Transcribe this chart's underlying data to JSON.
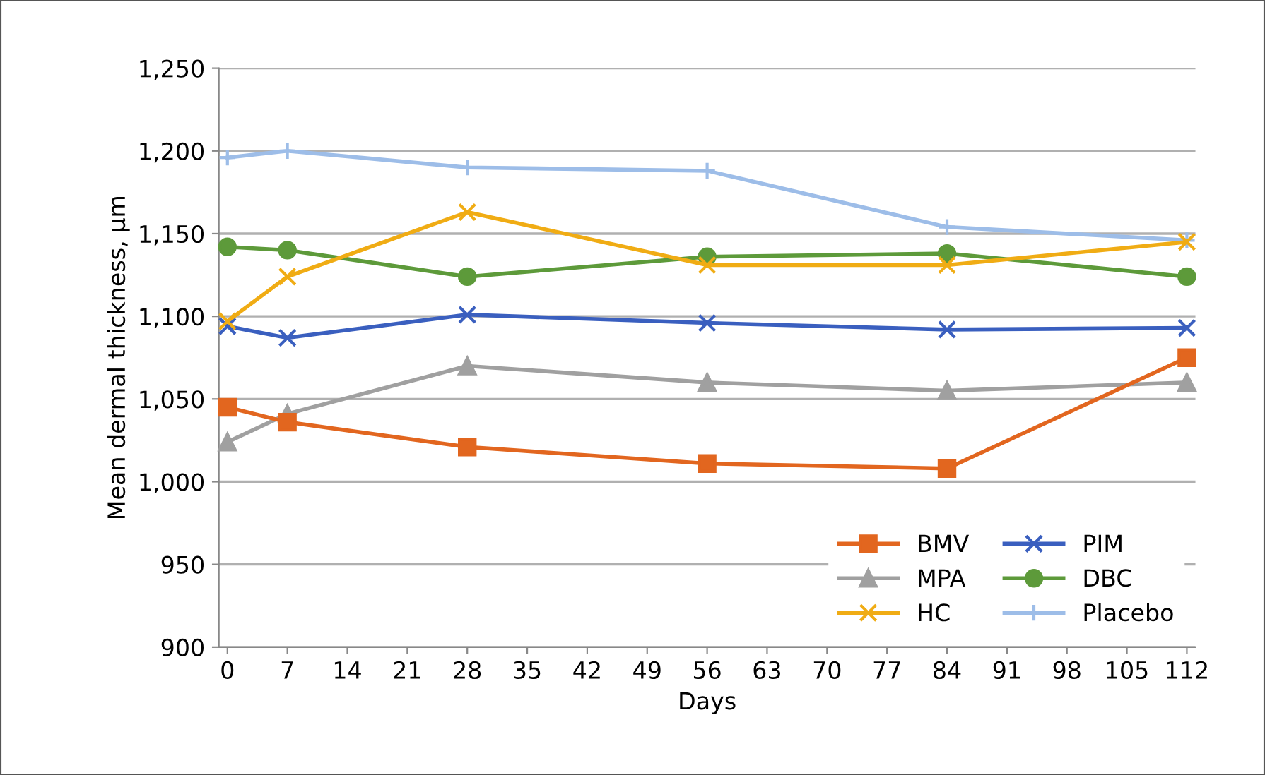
{
  "chart_data": {
    "type": "line",
    "xlabel": "Days",
    "ylabel": "Mean dermal thickness, µm",
    "x": [
      0,
      7,
      28,
      56,
      84,
      112
    ],
    "series": [
      {
        "name": "BMV",
        "color": "#e2661f",
        "marker": "square",
        "values": [
          1045,
          1036,
          1021,
          1011,
          1008,
          1075
        ]
      },
      {
        "name": "MPA",
        "color": "#a0a0a0",
        "marker": "triangle",
        "values": [
          1024,
          1041,
          1070,
          1060,
          1055,
          1060
        ]
      },
      {
        "name": "HC",
        "color": "#f0ac14",
        "marker": "cross",
        "values": [
          1097,
          1124,
          1163,
          1131,
          1131,
          1145
        ]
      },
      {
        "name": "PIM",
        "color": "#3a5fbf",
        "marker": "cross",
        "values": [
          1094,
          1087,
          1101,
          1096,
          1092,
          1093
        ]
      },
      {
        "name": "DBC",
        "color": "#5d9a3a",
        "marker": "circle",
        "values": [
          1142,
          1140,
          1124,
          1136,
          1138,
          1124
        ]
      },
      {
        "name": "Placebo",
        "color": "#9dbde8",
        "marker": "plus",
        "values": [
          1196,
          1200,
          1190,
          1188,
          1154,
          1146
        ]
      }
    ],
    "xlim": [
      -1,
      113
    ],
    "xticks": [
      0,
      7,
      14,
      21,
      28,
      35,
      42,
      49,
      56,
      63,
      70,
      77,
      84,
      91,
      98,
      105,
      112
    ],
    "ylim": [
      900,
      1250
    ],
    "yticks": [
      {
        "value": 900,
        "label": "900"
      },
      {
        "value": 950,
        "label": "950"
      },
      {
        "value": 1000,
        "label": "1,000"
      },
      {
        "value": 1050,
        "label": "1,050"
      },
      {
        "value": 1100,
        "label": "1,100"
      },
      {
        "value": 1150,
        "label": "1,150"
      },
      {
        "value": 1200,
        "label": "1,200"
      },
      {
        "value": 1250,
        "label": "1,250"
      }
    ],
    "grid": "y",
    "legend": "bottom right",
    "line_style": "solid"
  }
}
